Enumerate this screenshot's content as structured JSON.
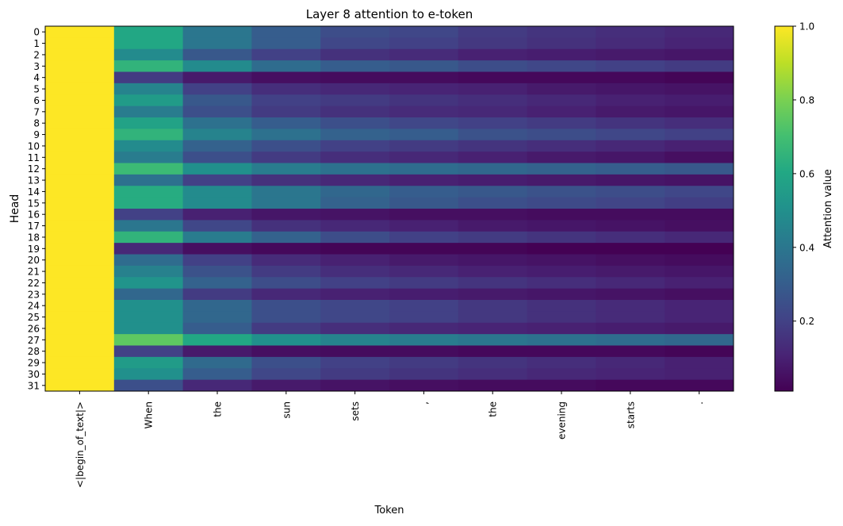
{
  "chart_data": {
    "type": "heatmap",
    "title": "Layer 8 attention to e-token",
    "xlabel": "Token",
    "ylabel": "Head",
    "colorbar_label": "Attention value",
    "colormap": "viridis",
    "colorbar_range": [
      0.01,
      1.0
    ],
    "colorbar_ticks": [
      "0.2",
      "0.4",
      "0.6",
      "0.8",
      "1.0"
    ],
    "x_tokens": [
      "<|begin_of_text|>",
      "When",
      "the",
      "sun",
      "sets",
      ",",
      "the",
      "evening",
      "starts",
      "."
    ],
    "y_heads": [
      "0",
      "1",
      "2",
      "3",
      "4",
      "5",
      "6",
      "7",
      "8",
      "9",
      "10",
      "11",
      "12",
      "13",
      "14",
      "15",
      "16",
      "17",
      "18",
      "19",
      "20",
      "21",
      "22",
      "23",
      "24",
      "25",
      "26",
      "27",
      "28",
      "29",
      "30",
      "31"
    ],
    "values": [
      [
        1.0,
        0.6,
        0.4,
        0.3,
        0.24,
        0.22,
        0.18,
        0.16,
        0.14,
        0.12
      ],
      [
        1.0,
        0.6,
        0.4,
        0.3,
        0.22,
        0.2,
        0.17,
        0.15,
        0.13,
        0.11
      ],
      [
        1.0,
        0.48,
        0.28,
        0.2,
        0.15,
        0.13,
        0.1,
        0.09,
        0.08,
        0.07
      ],
      [
        1.0,
        0.65,
        0.48,
        0.36,
        0.3,
        0.28,
        0.24,
        0.22,
        0.2,
        0.18
      ],
      [
        1.0,
        0.18,
        0.08,
        0.05,
        0.04,
        0.04,
        0.03,
        0.03,
        0.03,
        0.02
      ],
      [
        1.0,
        0.45,
        0.2,
        0.14,
        0.12,
        0.11,
        0.1,
        0.08,
        0.07,
        0.06
      ],
      [
        1.0,
        0.55,
        0.28,
        0.2,
        0.18,
        0.16,
        0.14,
        0.12,
        0.1,
        0.09
      ],
      [
        1.0,
        0.42,
        0.25,
        0.18,
        0.15,
        0.13,
        0.12,
        0.1,
        0.08,
        0.07
      ],
      [
        1.0,
        0.58,
        0.38,
        0.3,
        0.25,
        0.22,
        0.2,
        0.18,
        0.16,
        0.14
      ],
      [
        1.0,
        0.65,
        0.45,
        0.38,
        0.32,
        0.3,
        0.26,
        0.24,
        0.22,
        0.2
      ],
      [
        1.0,
        0.48,
        0.32,
        0.25,
        0.2,
        0.18,
        0.16,
        0.14,
        0.12,
        0.1
      ],
      [
        1.0,
        0.42,
        0.25,
        0.18,
        0.14,
        0.12,
        0.1,
        0.08,
        0.07,
        0.05
      ],
      [
        1.0,
        0.68,
        0.5,
        0.42,
        0.38,
        0.36,
        0.34,
        0.32,
        0.3,
        0.28
      ],
      [
        1.0,
        0.38,
        0.2,
        0.15,
        0.12,
        0.1,
        0.09,
        0.08,
        0.07,
        0.06
      ],
      [
        1.0,
        0.62,
        0.48,
        0.4,
        0.34,
        0.3,
        0.28,
        0.26,
        0.24,
        0.22
      ],
      [
        1.0,
        0.62,
        0.48,
        0.4,
        0.32,
        0.28,
        0.25,
        0.23,
        0.21,
        0.19
      ],
      [
        1.0,
        0.2,
        0.1,
        0.07,
        0.06,
        0.05,
        0.05,
        0.04,
        0.04,
        0.04
      ],
      [
        1.0,
        0.4,
        0.22,
        0.15,
        0.12,
        0.1,
        0.08,
        0.07,
        0.06,
        0.05
      ],
      [
        1.0,
        0.65,
        0.42,
        0.32,
        0.24,
        0.2,
        0.18,
        0.16,
        0.14,
        0.12
      ],
      [
        1.0,
        0.12,
        0.05,
        0.03,
        0.02,
        0.02,
        0.02,
        0.01,
        0.01,
        0.01
      ],
      [
        1.0,
        0.36,
        0.2,
        0.13,
        0.1,
        0.08,
        0.07,
        0.06,
        0.05,
        0.04
      ],
      [
        1.0,
        0.44,
        0.26,
        0.18,
        0.14,
        0.12,
        0.1,
        0.09,
        0.08,
        0.07
      ],
      [
        1.0,
        0.52,
        0.32,
        0.24,
        0.2,
        0.18,
        0.16,
        0.14,
        0.12,
        0.1
      ],
      [
        1.0,
        0.34,
        0.18,
        0.12,
        0.1,
        0.09,
        0.08,
        0.07,
        0.06,
        0.05
      ],
      [
        1.0,
        0.5,
        0.34,
        0.25,
        0.22,
        0.2,
        0.17,
        0.15,
        0.13,
        0.11
      ],
      [
        1.0,
        0.5,
        0.34,
        0.25,
        0.22,
        0.2,
        0.17,
        0.15,
        0.13,
        0.11
      ],
      [
        1.0,
        0.5,
        0.3,
        0.18,
        0.14,
        0.12,
        0.11,
        0.1,
        0.09,
        0.08
      ],
      [
        1.0,
        0.75,
        0.6,
        0.5,
        0.45,
        0.42,
        0.4,
        0.38,
        0.36,
        0.34
      ],
      [
        1.0,
        0.2,
        0.08,
        0.05,
        0.04,
        0.04,
        0.03,
        0.03,
        0.03,
        0.02
      ],
      [
        1.0,
        0.55,
        0.35,
        0.25,
        0.2,
        0.18,
        0.16,
        0.14,
        0.12,
        0.1
      ],
      [
        1.0,
        0.5,
        0.3,
        0.22,
        0.18,
        0.16,
        0.14,
        0.12,
        0.11,
        0.1
      ],
      [
        1.0,
        0.25,
        0.12,
        0.08,
        0.06,
        0.05,
        0.04,
        0.04,
        0.03,
        0.03
      ]
    ]
  }
}
